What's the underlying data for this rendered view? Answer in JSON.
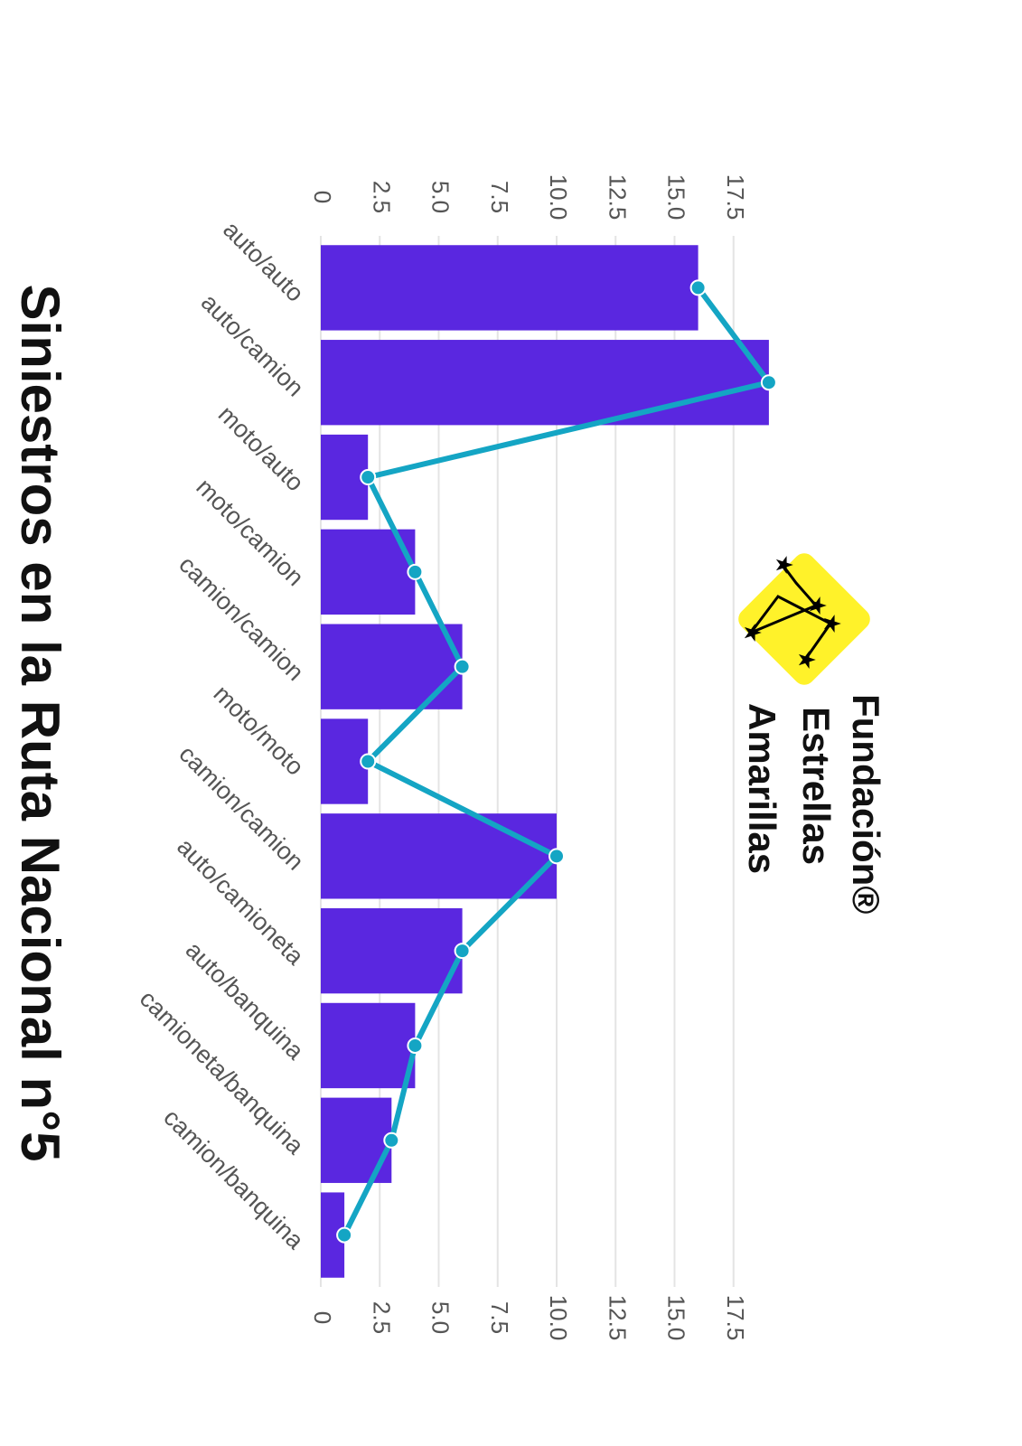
{
  "chart_data": {
    "type": "bar",
    "title": "Siniestros en la Ruta Nacional n°5",
    "logo": {
      "line1": "Fundación®",
      "line2": "Estrellas",
      "line3": "Amarillas"
    },
    "categories": [
      "auto/auto",
      "auto/camion",
      "moto/auto",
      "moto/camion",
      "camion/camion",
      "moto/moto",
      "camion/camion",
      "auto/camioneta",
      "auto/banquina",
      "camioneta/banquina",
      "camion/banquina"
    ],
    "series": [
      {
        "type": "bar",
        "color": "#5a27e0",
        "values": [
          16,
          19,
          2,
          4,
          6,
          2,
          10,
          6,
          4,
          3,
          1
        ]
      },
      {
        "type": "line",
        "color": "#14a5c4",
        "values": [
          16,
          19,
          2,
          4,
          6,
          2,
          10,
          6,
          4,
          3,
          1
        ]
      }
    ],
    "ylim": [
      0,
      20
    ],
    "yticks": [
      0,
      2.5,
      {
        "value": 5,
        "label": "5.0"
      },
      7.5,
      {
        "value": 10,
        "label": "10.0"
      },
      12.5,
      {
        "value": 15,
        "label": "15.0"
      },
      17.5
    ],
    "grid": true
  }
}
